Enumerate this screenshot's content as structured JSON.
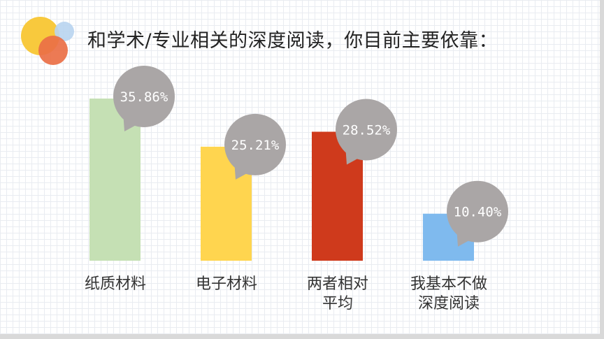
{
  "title": "和学术/专业相关的深度阅读，你目前主要依靠：",
  "chart_data": {
    "type": "bar",
    "categories": [
      "纸质材料",
      "电子材料",
      "两者相对\n平均",
      "我基本不做\n深度阅读"
    ],
    "values": [
      35.86,
      25.21,
      28.52,
      10.4
    ],
    "value_labels": [
      "35.86%",
      "25.21%",
      "28.52%",
      "10.40%"
    ],
    "colors": [
      "#c5e0b4",
      "#ffd54f",
      "#cf3a1c",
      "#7fbaee"
    ],
    "bubble_color": "#aaa6a6",
    "ylim": [
      0,
      40
    ],
    "grid": false,
    "legend": "none"
  }
}
